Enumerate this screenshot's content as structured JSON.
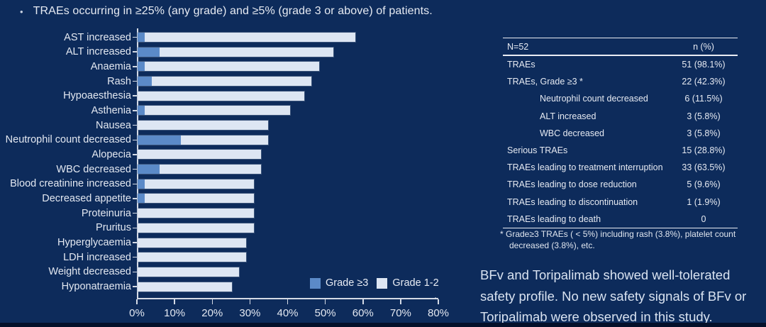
{
  "colors": {
    "background": "#0d2b5b",
    "grade3_bar": "#5b8ac8",
    "grade12_bar": "#dde6f3",
    "axis_line": "#d4dae5",
    "text": "#e6eaf2"
  },
  "title_bullet": "•",
  "title": "TRAEs occurring in ≥25% (any grade) and ≥5% (grade 3 or above) of patients.",
  "chart_data": {
    "type": "bar",
    "orientation": "horizontal",
    "stacked": true,
    "categories": [
      "AST increased",
      "ALT increased",
      "Anaemia",
      "Rash",
      "Hypoaesthesia",
      "Asthenia",
      "Nausea",
      "Neutrophil count decreased",
      "Alopecia",
      "WBC decreased",
      "Blood creatinine increased",
      "Decreased appetite",
      "Proteinuria",
      "Pruritus",
      "Hyperglycaemia",
      "LDH increased",
      "Weight decreased",
      "Hyponatraemia"
    ],
    "series": [
      {
        "name": "Grade ≥3",
        "color": "#5b8ac8",
        "values": [
          1.9,
          5.8,
          1.9,
          3.8,
          0,
          1.9,
          0,
          11.5,
          0,
          5.8,
          1.9,
          1.9,
          0,
          0,
          0,
          0,
          0,
          0
        ]
      },
      {
        "name": "Grade 1-2",
        "color": "#dde6f3",
        "values": [
          55.8,
          46.1,
          46.2,
          42.4,
          44.2,
          38.5,
          34.6,
          23.1,
          32.7,
          26.9,
          28.9,
          28.9,
          30.8,
          30.8,
          28.8,
          28.8,
          26.9,
          25.0
        ]
      }
    ],
    "any_grade_totals": [
      57.7,
      51.9,
      48.1,
      46.2,
      44.2,
      40.4,
      34.6,
      34.6,
      32.7,
      32.7,
      30.8,
      30.8,
      30.8,
      30.8,
      28.8,
      28.8,
      26.9,
      25.0
    ],
    "xlim": [
      0,
      80
    ],
    "x_tick_labels": [
      "0%",
      "10%",
      "20%",
      "30%",
      "40%",
      "50%",
      "60%",
      "70%",
      "80%"
    ],
    "grid": false,
    "legend_position": "bottom-right",
    "stray_period": "."
  },
  "table": {
    "header": {
      "left": "N=52",
      "right": "n (%)"
    },
    "rows": [
      {
        "label": "TRAEs",
        "value": "51 (98.1%)",
        "indent": false
      },
      {
        "label": "TRAEs, Grade ≥3 *",
        "value": "22 (42.3%)",
        "indent": false
      },
      {
        "label": "Neutrophil count decreased",
        "value": "6 (11.5%)",
        "indent": true
      },
      {
        "label": "ALT increased",
        "value": "3 (5.8%)",
        "indent": true
      },
      {
        "label": "WBC decreased",
        "value": "3 (5.8%)",
        "indent": true
      },
      {
        "label": "Serious TRAEs",
        "value": "15 (28.8%)",
        "indent": false
      },
      {
        "label": "TRAEs leading to treatment interruption",
        "value": "33 (63.5%)",
        "indent": false
      },
      {
        "label": "TRAEs leading to dose reduction",
        "value": "5 (9.6%)",
        "indent": false
      },
      {
        "label": "TRAEs leading to discontinuation",
        "value": "1 (1.9%)",
        "indent": false
      },
      {
        "label": "TRAEs leading to death",
        "value": "0",
        "indent": false
      }
    ],
    "footnote_lines": [
      "* Grade≥3 TRAEs ( < 5%) including rash (3.8%), platelet count",
      "decreased (3.8%), etc."
    ]
  },
  "summary_lines": [
    "BFv and Toripalimab showed well-tolerated",
    "safety profile. No new safety signals of BFv or",
    "Toripalimab were observed in this study."
  ]
}
